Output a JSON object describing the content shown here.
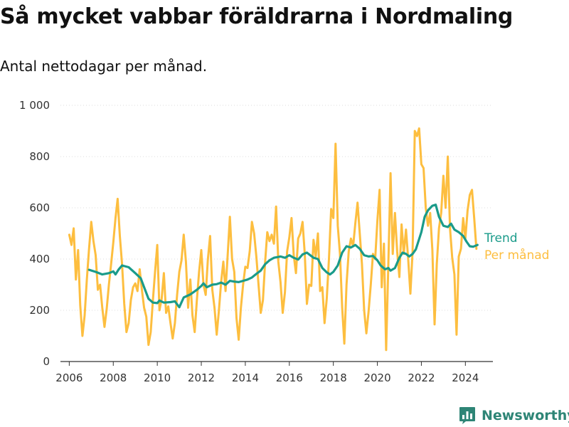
{
  "header": {
    "title": "Så mycket vabbar föräldrarna i Nordmaling",
    "subtitle": "Antal nettodagar per månad."
  },
  "brand": {
    "name": "Newsworthy",
    "icon": "bar-chart-logo-icon"
  },
  "colors": {
    "monthly": "#fdbe3f",
    "trend": "#1a9b8a",
    "brand": "#2e8576",
    "axis": "#333333",
    "grid": "#dddddd"
  },
  "chart_data": {
    "type": "line",
    "title": "Så mycket vabbar föräldrarna i Nordmaling",
    "subtitle": "Antal nettodagar per månad.",
    "xlabel": "",
    "ylabel": "",
    "ylim": [
      0,
      1000
    ],
    "yticks": [
      0,
      200,
      400,
      600,
      800,
      1000
    ],
    "ytick_labels": [
      "0",
      "200",
      "400",
      "600",
      "800",
      "1 000"
    ],
    "xlim": [
      2005.6,
      2025.25
    ],
    "xticks": [
      2006,
      2008,
      2010,
      2012,
      2014,
      2016,
      2018,
      2020,
      2022,
      2024
    ],
    "xtick_labels": [
      "2006",
      "2008",
      "2010",
      "2012",
      "2014",
      "2016",
      "2018",
      "2020",
      "2022",
      "2024"
    ],
    "grid": "horizontal dotted",
    "legend": "direct labels at right end of lines",
    "series": [
      {
        "name": "Per månad",
        "color": "#fdbe3f",
        "points": [
          [
            2006.0,
            495
          ],
          [
            2006.1,
            455
          ],
          [
            2006.2,
            520
          ],
          [
            2006.3,
            320
          ],
          [
            2006.4,
            435
          ],
          [
            2006.5,
            220
          ],
          [
            2006.6,
            100
          ],
          [
            2006.7,
            180
          ],
          [
            2006.8,
            320
          ],
          [
            2006.9,
            440
          ],
          [
            2007.0,
            545
          ],
          [
            2007.1,
            470
          ],
          [
            2007.2,
            415
          ],
          [
            2007.3,
            280
          ],
          [
            2007.4,
            300
          ],
          [
            2007.5,
            210
          ],
          [
            2007.6,
            135
          ],
          [
            2007.7,
            205
          ],
          [
            2007.8,
            300
          ],
          [
            2007.9,
            380
          ],
          [
            2008.0,
            465
          ],
          [
            2008.1,
            560
          ],
          [
            2008.2,
            635
          ],
          [
            2008.3,
            490
          ],
          [
            2008.4,
            380
          ],
          [
            2008.5,
            225
          ],
          [
            2008.6,
            115
          ],
          [
            2008.7,
            150
          ],
          [
            2008.8,
            240
          ],
          [
            2008.9,
            290
          ],
          [
            2009.0,
            305
          ],
          [
            2009.1,
            275
          ],
          [
            2009.2,
            360
          ],
          [
            2009.3,
            280
          ],
          [
            2009.4,
            210
          ],
          [
            2009.5,
            175
          ],
          [
            2009.6,
            65
          ],
          [
            2009.7,
            115
          ],
          [
            2009.8,
            240
          ],
          [
            2009.9,
            350
          ],
          [
            2010.0,
            455
          ],
          [
            2010.1,
            200
          ],
          [
            2010.2,
            245
          ],
          [
            2010.3,
            345
          ],
          [
            2010.4,
            190
          ],
          [
            2010.5,
            215
          ],
          [
            2010.6,
            150
          ],
          [
            2010.7,
            90
          ],
          [
            2010.8,
            150
          ],
          [
            2010.9,
            260
          ],
          [
            2011.0,
            350
          ],
          [
            2011.1,
            395
          ],
          [
            2011.2,
            495
          ],
          [
            2011.3,
            390
          ],
          [
            2011.4,
            210
          ],
          [
            2011.5,
            320
          ],
          [
            2011.6,
            180
          ],
          [
            2011.7,
            115
          ],
          [
            2011.8,
            240
          ],
          [
            2011.9,
            350
          ],
          [
            2012.0,
            435
          ],
          [
            2012.1,
            300
          ],
          [
            2012.2,
            260
          ],
          [
            2012.3,
            400
          ],
          [
            2012.4,
            490
          ],
          [
            2012.5,
            280
          ],
          [
            2012.6,
            210
          ],
          [
            2012.7,
            105
          ],
          [
            2012.8,
            200
          ],
          [
            2012.9,
            310
          ],
          [
            2013.0,
            390
          ],
          [
            2013.1,
            275
          ],
          [
            2013.2,
            420
          ],
          [
            2013.3,
            565
          ],
          [
            2013.4,
            400
          ],
          [
            2013.5,
            350
          ],
          [
            2013.6,
            170
          ],
          [
            2013.7,
            85
          ],
          [
            2013.8,
            210
          ],
          [
            2013.9,
            300
          ],
          [
            2014.0,
            370
          ],
          [
            2014.1,
            365
          ],
          [
            2014.2,
            430
          ],
          [
            2014.3,
            545
          ],
          [
            2014.4,
            500
          ],
          [
            2014.5,
            410
          ],
          [
            2014.6,
            300
          ],
          [
            2014.7,
            190
          ],
          [
            2014.8,
            240
          ],
          [
            2014.9,
            390
          ],
          [
            2015.0,
            505
          ],
          [
            2015.1,
            470
          ],
          [
            2015.2,
            495
          ],
          [
            2015.3,
            460
          ],
          [
            2015.4,
            605
          ],
          [
            2015.5,
            390
          ],
          [
            2015.6,
            310
          ],
          [
            2015.7,
            190
          ],
          [
            2015.8,
            270
          ],
          [
            2015.9,
            430
          ],
          [
            2016.0,
            485
          ],
          [
            2016.1,
            560
          ],
          [
            2016.2,
            415
          ],
          [
            2016.3,
            345
          ],
          [
            2016.4,
            480
          ],
          [
            2016.5,
            500
          ],
          [
            2016.6,
            545
          ],
          [
            2016.7,
            420
          ],
          [
            2016.8,
            225
          ],
          [
            2016.9,
            300
          ],
          [
            2017.0,
            295
          ],
          [
            2017.1,
            475
          ],
          [
            2017.2,
            410
          ],
          [
            2017.3,
            500
          ],
          [
            2017.4,
            275
          ],
          [
            2017.5,
            290
          ],
          [
            2017.6,
            150
          ],
          [
            2017.7,
            245
          ],
          [
            2017.8,
            400
          ],
          [
            2017.9,
            595
          ],
          [
            2018.0,
            560
          ],
          [
            2018.1,
            850
          ],
          [
            2018.2,
            530
          ],
          [
            2018.3,
            420
          ],
          [
            2018.4,
            210
          ],
          [
            2018.5,
            70
          ],
          [
            2018.6,
            300
          ],
          [
            2018.7,
            430
          ],
          [
            2018.8,
            480
          ],
          [
            2018.9,
            450
          ],
          [
            2019.0,
            540
          ],
          [
            2019.1,
            620
          ],
          [
            2019.2,
            500
          ],
          [
            2019.3,
            380
          ],
          [
            2019.4,
            200
          ],
          [
            2019.5,
            110
          ],
          [
            2019.6,
            195
          ],
          [
            2019.7,
            300
          ],
          [
            2019.8,
            420
          ],
          [
            2019.9,
            400
          ],
          [
            2020.0,
            550
          ],
          [
            2020.1,
            670
          ],
          [
            2020.2,
            290
          ],
          [
            2020.3,
            460
          ],
          [
            2020.4,
            45
          ],
          [
            2020.5,
            380
          ],
          [
            2020.6,
            735
          ],
          [
            2020.7,
            420
          ],
          [
            2020.8,
            580
          ],
          [
            2020.9,
            430
          ],
          [
            2021.0,
            330
          ],
          [
            2021.1,
            535
          ],
          [
            2021.2,
            420
          ],
          [
            2021.3,
            515
          ],
          [
            2021.4,
            400
          ],
          [
            2021.5,
            265
          ],
          [
            2021.6,
            430
          ],
          [
            2021.7,
            900
          ],
          [
            2021.8,
            880
          ],
          [
            2021.9,
            910
          ],
          [
            2022.0,
            770
          ],
          [
            2022.1,
            755
          ],
          [
            2022.2,
            600
          ],
          [
            2022.3,
            530
          ],
          [
            2022.4,
            580
          ],
          [
            2022.5,
            435
          ],
          [
            2022.6,
            145
          ],
          [
            2022.7,
            380
          ],
          [
            2022.8,
            520
          ],
          [
            2022.9,
            580
          ],
          [
            2023.0,
            725
          ],
          [
            2023.1,
            600
          ],
          [
            2023.2,
            800
          ],
          [
            2023.3,
            520
          ],
          [
            2023.4,
            405
          ],
          [
            2023.5,
            340
          ],
          [
            2023.6,
            105
          ],
          [
            2023.7,
            410
          ],
          [
            2023.8,
            440
          ],
          [
            2023.9,
            560
          ],
          [
            2024.0,
            480
          ],
          [
            2024.1,
            590
          ],
          [
            2024.2,
            650
          ],
          [
            2024.3,
            670
          ],
          [
            2024.4,
            560
          ],
          [
            2024.5,
            440
          ]
        ]
      },
      {
        "name": "Trend",
        "color": "#1a9b8a",
        "points": [
          [
            2006.9,
            358
          ],
          [
            2007.2,
            350
          ],
          [
            2007.5,
            340
          ],
          [
            2007.8,
            345
          ],
          [
            2008.0,
            352
          ],
          [
            2008.1,
            340
          ],
          [
            2008.25,
            360
          ],
          [
            2008.4,
            375
          ],
          [
            2008.7,
            368
          ],
          [
            2009.0,
            345
          ],
          [
            2009.25,
            325
          ],
          [
            2009.4,
            290
          ],
          [
            2009.6,
            245
          ],
          [
            2009.8,
            230
          ],
          [
            2010.0,
            228
          ],
          [
            2010.1,
            238
          ],
          [
            2010.3,
            230
          ],
          [
            2010.6,
            232
          ],
          [
            2010.8,
            235
          ],
          [
            2011.0,
            212
          ],
          [
            2011.2,
            250
          ],
          [
            2011.5,
            262
          ],
          [
            2011.8,
            280
          ],
          [
            2012.0,
            295
          ],
          [
            2012.1,
            305
          ],
          [
            2012.25,
            290
          ],
          [
            2012.5,
            300
          ],
          [
            2012.7,
            302
          ],
          [
            2012.9,
            308
          ],
          [
            2013.1,
            300
          ],
          [
            2013.3,
            315
          ],
          [
            2013.5,
            312
          ],
          [
            2013.7,
            310
          ],
          [
            2013.9,
            315
          ],
          [
            2014.1,
            320
          ],
          [
            2014.3,
            328
          ],
          [
            2014.5,
            342
          ],
          [
            2014.7,
            355
          ],
          [
            2014.9,
            380
          ],
          [
            2015.1,
            395
          ],
          [
            2015.3,
            405
          ],
          [
            2015.6,
            410
          ],
          [
            2015.8,
            405
          ],
          [
            2016.0,
            415
          ],
          [
            2016.2,
            405
          ],
          [
            2016.4,
            398
          ],
          [
            2016.6,
            418
          ],
          [
            2016.8,
            425
          ],
          [
            2017.1,
            405
          ],
          [
            2017.3,
            400
          ],
          [
            2017.5,
            365
          ],
          [
            2017.7,
            348
          ],
          [
            2017.85,
            340
          ],
          [
            2018.0,
            350
          ],
          [
            2018.2,
            375
          ],
          [
            2018.4,
            425
          ],
          [
            2018.6,
            450
          ],
          [
            2018.8,
            445
          ],
          [
            2019.0,
            455
          ],
          [
            2019.2,
            440
          ],
          [
            2019.4,
            415
          ],
          [
            2019.6,
            410
          ],
          [
            2019.8,
            412
          ],
          [
            2020.0,
            395
          ],
          [
            2020.15,
            375
          ],
          [
            2020.35,
            360
          ],
          [
            2020.5,
            365
          ],
          [
            2020.6,
            355
          ],
          [
            2020.8,
            365
          ],
          [
            2021.0,
            405
          ],
          [
            2021.15,
            425
          ],
          [
            2021.3,
            420
          ],
          [
            2021.45,
            410
          ],
          [
            2021.6,
            420
          ],
          [
            2021.75,
            438
          ],
          [
            2022.0,
            505
          ],
          [
            2022.15,
            565
          ],
          [
            2022.3,
            590
          ],
          [
            2022.5,
            608
          ],
          [
            2022.65,
            612
          ],
          [
            2022.8,
            565
          ],
          [
            2023.0,
            530
          ],
          [
            2023.2,
            525
          ],
          [
            2023.35,
            538
          ],
          [
            2023.5,
            515
          ],
          [
            2023.7,
            505
          ],
          [
            2023.9,
            490
          ],
          [
            2024.05,
            468
          ],
          [
            2024.2,
            450
          ],
          [
            2024.35,
            448
          ],
          [
            2024.55,
            455
          ]
        ]
      }
    ]
  }
}
